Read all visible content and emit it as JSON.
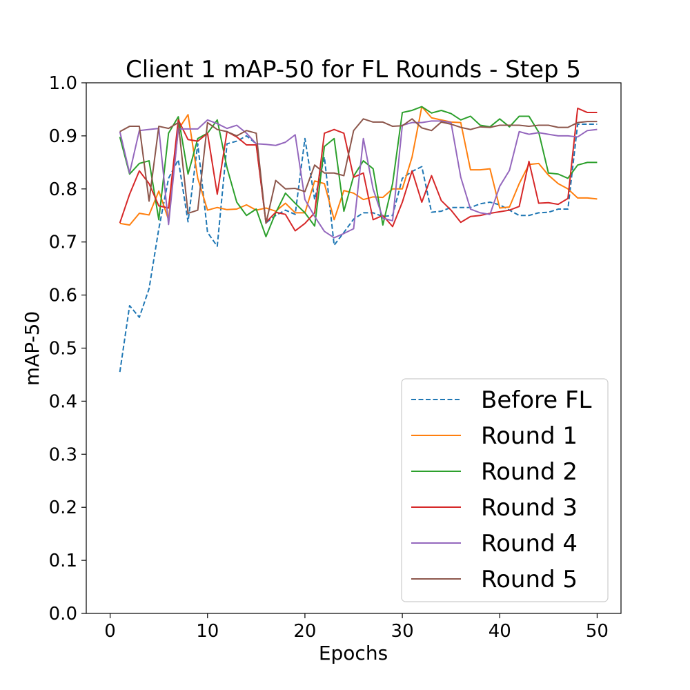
{
  "chart_data": {
    "type": "line",
    "title": "Client 1 mAP-50 for FL Rounds - Step 5",
    "xlabel": "Epochs",
    "ylabel": "mAP-50",
    "xlim": [
      -2.45,
      52.45
    ],
    "ylim": [
      0.0,
      1.0
    ],
    "x_ticks": [
      0,
      10,
      20,
      30,
      40,
      50
    ],
    "x_tick_labels": [
      "0",
      "10",
      "20",
      "30",
      "40",
      "50"
    ],
    "y_ticks": [
      0.0,
      0.1,
      0.2,
      0.3,
      0.4,
      0.5,
      0.6,
      0.7,
      0.8,
      0.9,
      1.0
    ],
    "y_tick_labels": [
      "0.0",
      "0.1",
      "0.2",
      "0.3",
      "0.4",
      "0.5",
      "0.6",
      "0.7",
      "0.8",
      "0.9",
      "1.0"
    ],
    "grid": false,
    "legend_position": "lower-right",
    "x": [
      1,
      2,
      3,
      4,
      5,
      6,
      7,
      8,
      9,
      10,
      11,
      12,
      13,
      14,
      15,
      16,
      17,
      18,
      19,
      20,
      21,
      22,
      23,
      24,
      25,
      26,
      27,
      28,
      29,
      30,
      31,
      32,
      33,
      34,
      35,
      36,
      37,
      38,
      39,
      40,
      41,
      42,
      43,
      44,
      45,
      46,
      47,
      48,
      49,
      50
    ],
    "series": [
      {
        "name": "Before FL",
        "color": "#1f77b4",
        "dashed": true,
        "values": [
          0.455,
          0.58,
          0.558,
          0.612,
          0.725,
          0.82,
          0.855,
          0.738,
          0.885,
          0.718,
          0.692,
          0.885,
          0.89,
          0.9,
          0.885,
          0.736,
          0.75,
          0.76,
          0.752,
          0.895,
          0.78,
          0.86,
          0.694,
          0.718,
          0.743,
          0.755,
          0.755,
          0.748,
          0.75,
          0.82,
          0.833,
          0.842,
          0.756,
          0.758,
          0.765,
          0.765,
          0.765,
          0.772,
          0.775,
          0.77,
          0.76,
          0.75,
          0.75,
          0.755,
          0.756,
          0.762,
          0.762,
          0.922,
          0.922,
          0.922
        ]
      },
      {
        "name": "Round 1",
        "color": "#ff7f0e",
        "dashed": false,
        "values": [
          0.735,
          0.732,
          0.754,
          0.751,
          0.796,
          0.742,
          0.912,
          0.94,
          0.82,
          0.76,
          0.765,
          0.761,
          0.762,
          0.77,
          0.76,
          0.764,
          0.758,
          0.773,
          0.755,
          0.755,
          0.815,
          0.81,
          0.742,
          0.797,
          0.792,
          0.78,
          0.785,
          0.784,
          0.8,
          0.8,
          0.86,
          0.955,
          0.934,
          0.93,
          0.926,
          0.925,
          0.836,
          0.836,
          0.838,
          0.764,
          0.766,
          0.81,
          0.846,
          0.848,
          0.826,
          0.81,
          0.8,
          0.783,
          0.783,
          0.781
        ]
      },
      {
        "name": "Round 2",
        "color": "#2ca02c",
        "dashed": false,
        "values": [
          0.898,
          0.828,
          0.848,
          0.853,
          0.742,
          0.905,
          0.936,
          0.828,
          0.895,
          0.905,
          0.93,
          0.84,
          0.775,
          0.75,
          0.762,
          0.71,
          0.755,
          0.792,
          0.773,
          0.755,
          0.73,
          0.88,
          0.895,
          0.758,
          0.824,
          0.853,
          0.838,
          0.732,
          0.81,
          0.944,
          0.948,
          0.955,
          0.943,
          0.948,
          0.942,
          0.93,
          0.937,
          0.92,
          0.917,
          0.932,
          0.917,
          0.937,
          0.937,
          0.907,
          0.83,
          0.828,
          0.82,
          0.845,
          0.85,
          0.85
        ]
      },
      {
        "name": "Round 3",
        "color": "#d62728",
        "dashed": false,
        "values": [
          0.736,
          0.79,
          0.834,
          0.81,
          0.768,
          0.764,
          0.93,
          0.893,
          0.89,
          0.905,
          0.79,
          0.908,
          0.898,
          0.883,
          0.883,
          0.737,
          0.756,
          0.752,
          0.721,
          0.735,
          0.755,
          0.905,
          0.912,
          0.905,
          0.822,
          0.83,
          0.742,
          0.75,
          0.729,
          0.775,
          0.834,
          0.775,
          0.825,
          0.778,
          0.76,
          0.737,
          0.748,
          0.75,
          0.754,
          0.757,
          0.76,
          0.767,
          0.852,
          0.773,
          0.774,
          0.771,
          0.782,
          0.952,
          0.944,
          0.944
        ]
      },
      {
        "name": "Round 4",
        "color": "#9467bd",
        "dashed": false,
        "values": [
          0.908,
          0.83,
          0.91,
          0.912,
          0.914,
          0.733,
          0.913,
          0.913,
          0.913,
          0.93,
          0.923,
          0.914,
          0.92,
          0.905,
          0.885,
          0.884,
          0.882,
          0.888,
          0.902,
          0.78,
          0.748,
          0.72,
          0.708,
          0.716,
          0.725,
          0.895,
          0.8,
          0.745,
          0.74,
          0.92,
          0.925,
          0.925,
          0.928,
          0.928,
          0.925,
          0.822,
          0.762,
          0.755,
          0.752,
          0.805,
          0.835,
          0.908,
          0.903,
          0.906,
          0.903,
          0.9,
          0.9,
          0.898,
          0.91,
          0.912
        ]
      },
      {
        "name": "Round 5",
        "color": "#8c564b",
        "dashed": false,
        "values": [
          0.908,
          0.918,
          0.918,
          0.777,
          0.918,
          0.914,
          0.925,
          0.754,
          0.76,
          0.925,
          0.912,
          0.908,
          0.9,
          0.91,
          0.905,
          0.735,
          0.816,
          0.8,
          0.801,
          0.795,
          0.845,
          0.83,
          0.83,
          0.825,
          0.91,
          0.932,
          0.926,
          0.926,
          0.918,
          0.919,
          0.932,
          0.915,
          0.91,
          0.926,
          0.922,
          0.916,
          0.912,
          0.917,
          0.916,
          0.92,
          0.92,
          0.92,
          0.918,
          0.92,
          0.92,
          0.916,
          0.916,
          0.925,
          0.927,
          0.927
        ]
      }
    ]
  }
}
